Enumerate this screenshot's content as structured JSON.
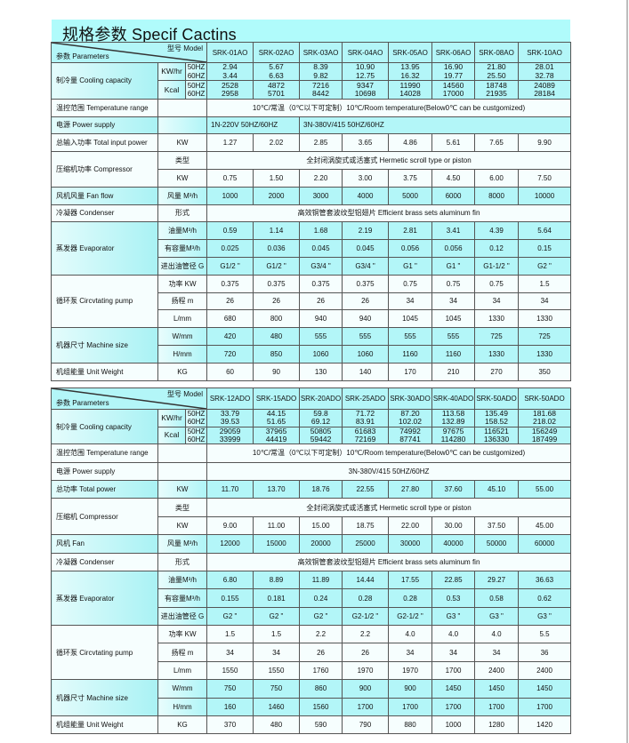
{
  "title": "规格参数 Specif Cactins",
  "colors": {
    "title_bar": "#b0fbfb",
    "row_cyan": "#b3f6f8",
    "row_white": "#f6fefe",
    "border": "#555555"
  },
  "t1": {
    "header": {
      "model_label": "型号 Model",
      "param_label": "参数 Parameters",
      "models": [
        "SRK-01AO",
        "SRK-02AO",
        "SRK-03AO",
        "SRK-04AO",
        "SRK-05AO",
        "SRK-06AO",
        "SRK-08AO",
        "SRK-10AO"
      ]
    },
    "cooling": {
      "label": "制冷量 Cooling capacity",
      "groups": [
        {
          "unit": "KW/hr",
          "rows": [
            {
              "freq": "50HZ",
              "values": [
                "2.94",
                "5.67",
                "8.39",
                "10.90",
                "13.95",
                "16.90",
                "21.80",
                "28.01"
              ]
            },
            {
              "freq": "60HZ",
              "values": [
                "3.44",
                "6.63",
                "9.82",
                "12.75",
                "16.32",
                "19.77",
                "25.50",
                "32.78"
              ]
            }
          ]
        },
        {
          "unit": "Kcal",
          "rows": [
            {
              "freq": "50HZ",
              "values": [
                "2528",
                "4872",
                "7216",
                "9347",
                "11990",
                "14560",
                "18748",
                "24089"
              ]
            },
            {
              "freq": "60HZ",
              "values": [
                "2958",
                "5701",
                "8442",
                "10698",
                "14028",
                "17000",
                "21935",
                "28184"
              ]
            }
          ]
        }
      ]
    },
    "sections": [
      {
        "label": "温控范围 Temperatune range",
        "tone": "white",
        "rows": [
          {
            "unit": "",
            "groups": [
              {
                "text": "10℃/常温（0℃以下可定制）10℃/Room temperature(Below0℃ can be custgomized)",
                "applies_to": [
                  "SRK-01AO",
                  "SRK-02AO",
                  "SRK-03AO",
                  "SRK-04AO",
                  "SRK-05AO",
                  "SRK-06AO",
                  "SRK-08AO",
                  "SRK-10AO"
                ]
              }
            ]
          }
        ]
      },
      {
        "label": "电源 Power supply",
        "tone": "cyan",
        "rows": [
          {
            "unit": "",
            "groups": [
              {
                "text": "1N-220V 50HZ/60HZ",
                "applies_to": [
                  "SRK-01AO",
                  "SRK-02AO"
                ]
              },
              {
                "text": "3N-380V/415 50HZ/60HZ",
                "applies_to": [
                  "SRK-03AO",
                  "SRK-04AO",
                  "SRK-05AO",
                  "SRK-06AO",
                  "SRK-08AO",
                  "SRK-10AO"
                ]
              }
            ]
          }
        ]
      },
      {
        "label": "总输入功率 Total input power",
        "tone": "white",
        "rows": [
          {
            "unit": "KW",
            "values": [
              "1.27",
              "2.02",
              "2.85",
              "3.65",
              "4.86",
              "5.61",
              "7.65",
              "9.90"
            ]
          }
        ]
      },
      {
        "label": "压缩机功率 Compressor",
        "tone": "white",
        "rows": [
          {
            "unit": "类型",
            "groups": [
              {
                "text": "全封闭涡旋式或活塞式 Hermetic scroll type or piston",
                "applies_to": [
                  "SRK-01AO",
                  "SRK-02AO",
                  "SRK-03AO",
                  "SRK-04AO",
                  "SRK-05AO",
                  "SRK-06AO",
                  "SRK-08AO",
                  "SRK-10AO"
                ]
              }
            ]
          },
          {
            "unit": "KW",
            "values": [
              "0.75",
              "1.50",
              "2.20",
              "3.00",
              "3.75",
              "4.50",
              "6.00",
              "7.50"
            ]
          }
        ]
      },
      {
        "label": "风机风量 Fan flow",
        "tone": "cyan",
        "rows": [
          {
            "unit": "风量 M³/h",
            "values": [
              "1000",
              "2000",
              "3000",
              "4000",
              "5000",
              "6000",
              "8000",
              "10000"
            ]
          }
        ]
      },
      {
        "label": "冷凝器 Condenser",
        "tone": "white",
        "rows": [
          {
            "unit": "形式",
            "groups": [
              {
                "text": "高效铜管套波纹型铝翅片 Efficient  brass sets  aluminum fin",
                "applies_to": [
                  "SRK-01AO",
                  "SRK-02AO",
                  "SRK-03AO",
                  "SRK-04AO",
                  "SRK-05AO",
                  "SRK-06AO",
                  "SRK-08AO",
                  "SRK-10AO"
                ]
              }
            ]
          }
        ]
      },
      {
        "label": "蒸发器 Evaporator",
        "tone": "cyan",
        "rows": [
          {
            "unit": "油量M³/h",
            "values": [
              "0.59",
              "1.14",
              "1.68",
              "2.19",
              "2.81",
              "3.41",
              "4.39",
              "5.64"
            ]
          },
          {
            "unit": "有容量M³/h",
            "values": [
              "0.025",
              "0.036",
              "0.045",
              "0.045",
              "0.056",
              "0.056",
              "0.12",
              "0.15"
            ]
          },
          {
            "unit": "进出油管径 G",
            "values": [
              "G1/2 \"",
              "G1/2 \"",
              "G3/4 \"",
              "G3/4 \"",
              "G1 \"",
              "G1 \"",
              "G1-1/2 \"",
              "G2 \""
            ]
          }
        ]
      },
      {
        "label": "循环泵 Circvtating pump",
        "tone": "white",
        "rows": [
          {
            "unit": "功率 KW",
            "values": [
              "0.375",
              "0.375",
              "0.375",
              "0.375",
              "0.75",
              "0.75",
              "0.75",
              "1.5"
            ]
          },
          {
            "unit": "扬程 m",
            "values": [
              "26",
              "26",
              "26",
              "26",
              "34",
              "34",
              "34",
              "34"
            ]
          },
          {
            "unit": "L/mm",
            "values": [
              "680",
              "800",
              "940",
              "940",
              "1045",
              "1045",
              "1330",
              "1330"
            ]
          }
        ]
      },
      {
        "label": "机器尺寸 Machine size",
        "tone": "cyan",
        "rows": [
          {
            "unit": "W/mm",
            "values": [
              "420",
              "480",
              "555",
              "555",
              "555",
              "555",
              "725",
              "725"
            ]
          },
          {
            "unit": "H/mm",
            "values": [
              "720",
              "850",
              "1060",
              "1060",
              "1160",
              "1160",
              "1330",
              "1330"
            ]
          }
        ]
      },
      {
        "label": "机组能量 Unit Weight",
        "tone": "white",
        "rows": [
          {
            "unit": "KG",
            "values": [
              "60",
              "90",
              "130",
              "140",
              "170",
              "210",
              "270",
              "350"
            ]
          }
        ]
      }
    ]
  },
  "t2": {
    "header": {
      "model_label": "型号 Model",
      "param_label": "参数 Parameters",
      "models": [
        "SRK-12ADO",
        "SRK-15ADO",
        "SRK-20ADO",
        "SRK-25ADO",
        "SRK-30ADO",
        "SRK-40ADO",
        "SRK-50ADO",
        "SRK-50ADO"
      ]
    },
    "cooling": {
      "label": "制冷量 Cooling capacity",
      "groups": [
        {
          "unit": "KW/hr",
          "rows": [
            {
              "freq": "50HZ",
              "values": [
                "33.79",
                "44.15",
                "59.8",
                "71.72",
                "87.20",
                "113.58",
                "135.49",
                "181.68"
              ]
            },
            {
              "freq": "60HZ",
              "values": [
                "39.53",
                "51.65",
                "69.12",
                "83.91",
                "102.02",
                "132.89",
                "158.52",
                "218.02"
              ]
            }
          ]
        },
        {
          "unit": "Kcal",
          "rows": [
            {
              "freq": "50HZ",
              "values": [
                "29059",
                "37965",
                "50805",
                "61683",
                "74992",
                "97675",
                "116521",
                "156249"
              ]
            },
            {
              "freq": "60HZ",
              "values": [
                "33999",
                "44419",
                "59442",
                "72169",
                "87741",
                "114280",
                "136330",
                "187499"
              ]
            }
          ]
        }
      ]
    },
    "sections": [
      {
        "label": "温控范围 Temperatune range",
        "tone": "white",
        "rows": [
          {
            "unit": "",
            "groups": [
              {
                "text": "10℃/常温（0℃以下可定制）10℃/Room temperature(Below0℃ can be custgomized)",
                "applies_to": [
                  "SRK-12ADO",
                  "SRK-15ADO",
                  "SRK-20ADO",
                  "SRK-25ADO",
                  "SRK-30ADO",
                  "SRK-40ADO",
                  "SRK-50ADO",
                  "SRK-50ADO"
                ]
              }
            ]
          }
        ]
      },
      {
        "label": "电源 Power supply",
        "tone": "white",
        "rows": [
          {
            "unit": "",
            "groups": [
              {
                "text": "3N-380V/415 50HZ/60HZ",
                "applies_to": [
                  "SRK-12ADO",
                  "SRK-15ADO",
                  "SRK-20ADO",
                  "SRK-25ADO",
                  "SRK-30ADO",
                  "SRK-40ADO",
                  "SRK-50ADO",
                  "SRK-50ADO"
                ]
              }
            ]
          }
        ]
      },
      {
        "label": "总功率 Total power",
        "tone": "cyan",
        "rows": [
          {
            "unit": "KW",
            "values": [
              "11.70",
              "13.70",
              "18.76",
              "22.55",
              "27.80",
              "37.60",
              "45.10",
              "55.00"
            ]
          }
        ]
      },
      {
        "label": "压缩机 Compressor",
        "tone": "white",
        "rows": [
          {
            "unit": "类型",
            "groups": [
              {
                "text": "全封闭涡旋式或活塞式 Hermetic scroll type or piston",
                "applies_to": [
                  "SRK-12ADO",
                  "SRK-15ADO",
                  "SRK-20ADO",
                  "SRK-25ADO",
                  "SRK-30ADO",
                  "SRK-40ADO",
                  "SRK-50ADO",
                  "SRK-50ADO"
                ]
              }
            ]
          },
          {
            "unit": "KW",
            "values": [
              "9.00",
              "11.00",
              "15.00",
              "18.75",
              "22.00",
              "30.00",
              "37.50",
              "45.00"
            ]
          }
        ]
      },
      {
        "label": "风机 Fan",
        "tone": "cyan",
        "rows": [
          {
            "unit": "风量 M³/h",
            "values": [
              "12000",
              "15000",
              "20000",
              "25000",
              "30000",
              "40000",
              "50000",
              "60000"
            ]
          }
        ]
      },
      {
        "label": "冷凝器 Condenser",
        "tone": "white",
        "rows": [
          {
            "unit": "形式",
            "groups": [
              {
                "text": "高效铜管套波纹型铝翅片 Efficient  brass sets  aluminum fin",
                "applies_to": [
                  "SRK-12ADO",
                  "SRK-15ADO",
                  "SRK-20ADO",
                  "SRK-25ADO",
                  "SRK-30ADO",
                  "SRK-40ADO",
                  "SRK-50ADO",
                  "SRK-50ADO"
                ]
              }
            ]
          }
        ]
      },
      {
        "label": "蒸发器 Evaporator",
        "tone": "cyan",
        "rows": [
          {
            "unit": "油量M³/h",
            "values": [
              "6.80",
              "8.89",
              "11.89",
              "14.44",
              "17.55",
              "22.85",
              "29.27",
              "36.63"
            ]
          },
          {
            "unit": "有容量M³/h",
            "values": [
              "0.155",
              "0.181",
              "0.24",
              "0.28",
              "0.28",
              "0.53",
              "0.58",
              "0.62"
            ]
          },
          {
            "unit": "进出油管径 G",
            "values": [
              "G2 \"",
              "G2 \"",
              "G2 \"",
              "G2-1/2 \"",
              "G2-1/2 \"",
              "G3 \"",
              "G3 \"",
              "G3 \""
            ]
          }
        ]
      },
      {
        "label": "循环泵 Circvtating pump",
        "tone": "white",
        "rows": [
          {
            "unit": "功率 KW",
            "values": [
              "1.5",
              "1.5",
              "2.2",
              "2.2",
              "4.0",
              "4.0",
              "4.0",
              "5.5"
            ]
          },
          {
            "unit": "扬程 m",
            "values": [
              "34",
              "34",
              "26",
              "26",
              "34",
              "34",
              "34",
              "36"
            ]
          },
          {
            "unit": "L/mm",
            "values": [
              "1550",
              "1550",
              "1760",
              "1970",
              "1970",
              "1700",
              "2400",
              "2400"
            ]
          }
        ]
      },
      {
        "label": "机器尺寸 Machine size",
        "tone": "cyan",
        "rows": [
          {
            "unit": "W/mm",
            "values": [
              "750",
              "750",
              "860",
              "900",
              "900",
              "1450",
              "1450",
              "1450"
            ]
          },
          {
            "unit": "H/mm",
            "values": [
              "160",
              "1460",
              "1560",
              "1700",
              "1700",
              "1700",
              "1700",
              "1700"
            ]
          }
        ]
      },
      {
        "label": "机组能量 Unit Weight",
        "tone": "white",
        "rows": [
          {
            "unit": "KG",
            "values": [
              "370",
              "480",
              "590",
              "790",
              "880",
              "1000",
              "1280",
              "1420"
            ]
          }
        ]
      }
    ]
  }
}
